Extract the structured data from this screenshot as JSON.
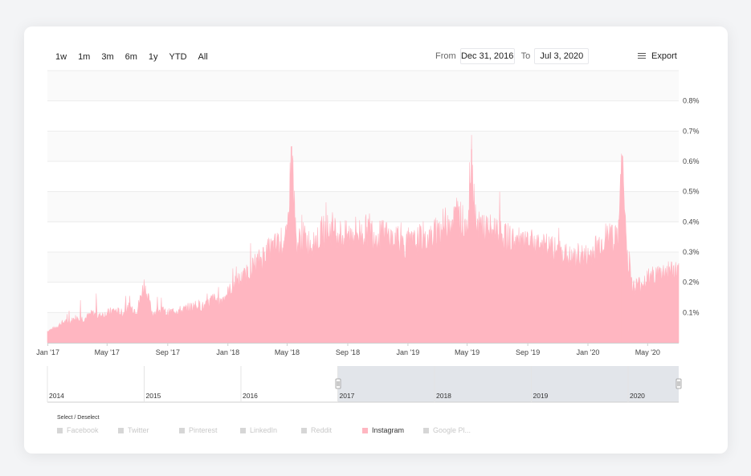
{
  "range_buttons": [
    "1w",
    "1m",
    "3m",
    "6m",
    "1y",
    "YTD",
    "All"
  ],
  "from_label": "From",
  "from_value": "Dec 31, 2016",
  "to_label": "To",
  "to_value": "Jul 3, 2020",
  "export_label": "Export",
  "legend_title": "Select / Deselect",
  "legend": [
    {
      "label": "Facebook",
      "active": false
    },
    {
      "label": "Twitter",
      "active": false
    },
    {
      "label": "Pinterest",
      "active": false
    },
    {
      "label": "LinkedIn",
      "active": false
    },
    {
      "label": "Reddit",
      "active": false
    },
    {
      "label": "Instagram",
      "active": true
    },
    {
      "label": "Google Pl...",
      "active": false
    }
  ],
  "colors": {
    "series": "#ffb6c1",
    "navigator_mask": "#e2e5ea"
  },
  "chart_data": {
    "type": "area",
    "x_range": [
      "2016-12-31",
      "2020-07-03"
    ],
    "ylim": [
      0,
      0.9
    ],
    "yticks": [
      0.1,
      0.2,
      0.3,
      0.4,
      0.5,
      0.6,
      0.7,
      0.8
    ],
    "ytick_labels": [
      "0.1%",
      "0.2%",
      "0.3%",
      "0.4%",
      "0.5%",
      "0.6%",
      "0.7%",
      "0.8%"
    ],
    "xtick_labels": [
      "Jan '17",
      "May '17",
      "Sep '17",
      "Jan '18",
      "May '18",
      "Sep '18",
      "Jan '19",
      "May '19",
      "Sep '19",
      "Jan '20",
      "May '20"
    ],
    "xtick_dates": [
      "2017-01-01",
      "2017-05-01",
      "2017-09-01",
      "2018-01-01",
      "2018-05-01",
      "2018-09-01",
      "2019-01-01",
      "2019-05-01",
      "2019-09-01",
      "2020-01-01",
      "2020-05-01"
    ],
    "grid": true,
    "series": [
      {
        "name": "Instagram",
        "x": [
          "2017-01-01",
          "2017-01-15",
          "2017-02-01",
          "2017-02-15",
          "2017-03-01",
          "2017-03-15",
          "2017-04-01",
          "2017-04-15",
          "2017-05-01",
          "2017-05-15",
          "2017-06-01",
          "2017-06-15",
          "2017-07-01",
          "2017-07-15",
          "2017-08-01",
          "2017-08-15",
          "2017-09-01",
          "2017-09-15",
          "2017-10-01",
          "2017-10-15",
          "2017-11-01",
          "2017-11-15",
          "2017-12-01",
          "2017-12-15",
          "2018-01-01",
          "2018-01-15",
          "2018-02-01",
          "2018-02-15",
          "2018-03-01",
          "2018-03-15",
          "2018-04-01",
          "2018-04-15",
          "2018-05-01",
          "2018-05-10",
          "2018-05-20",
          "2018-06-01",
          "2018-06-15",
          "2018-07-01",
          "2018-07-15",
          "2018-08-01",
          "2018-08-15",
          "2018-09-01",
          "2018-09-15",
          "2018-10-01",
          "2018-10-15",
          "2018-11-01",
          "2018-11-15",
          "2018-12-01",
          "2018-12-15",
          "2019-01-01",
          "2019-01-15",
          "2019-02-01",
          "2019-02-15",
          "2019-03-01",
          "2019-03-15",
          "2019-04-01",
          "2019-04-15",
          "2019-05-01",
          "2019-05-10",
          "2019-05-20",
          "2019-06-01",
          "2019-06-15",
          "2019-07-01",
          "2019-07-15",
          "2019-08-01",
          "2019-08-15",
          "2019-09-01",
          "2019-09-15",
          "2019-10-01",
          "2019-10-15",
          "2019-11-01",
          "2019-11-15",
          "2019-12-01",
          "2019-12-15",
          "2020-01-01",
          "2020-01-15",
          "2020-02-01",
          "2020-02-15",
          "2020-03-01",
          "2020-03-10",
          "2020-03-20",
          "2020-04-01",
          "2020-04-15",
          "2020-05-01",
          "2020-05-15",
          "2020-06-01",
          "2020-06-15",
          "2020-07-03"
        ],
        "values": [
          0.04,
          0.05,
          0.07,
          0.07,
          0.09,
          0.08,
          0.1,
          0.09,
          0.1,
          0.11,
          0.1,
          0.12,
          0.11,
          0.2,
          0.1,
          0.11,
          0.1,
          0.11,
          0.11,
          0.12,
          0.13,
          0.12,
          0.15,
          0.14,
          0.17,
          0.2,
          0.22,
          0.25,
          0.27,
          0.3,
          0.32,
          0.34,
          0.35,
          0.65,
          0.33,
          0.36,
          0.34,
          0.35,
          0.38,
          0.39,
          0.37,
          0.36,
          0.38,
          0.37,
          0.39,
          0.36,
          0.37,
          0.35,
          0.34,
          0.33,
          0.34,
          0.36,
          0.35,
          0.38,
          0.4,
          0.42,
          0.43,
          0.39,
          0.64,
          0.38,
          0.4,
          0.38,
          0.39,
          0.36,
          0.35,
          0.34,
          0.33,
          0.34,
          0.33,
          0.32,
          0.31,
          0.3,
          0.28,
          0.3,
          0.29,
          0.32,
          0.35,
          0.37,
          0.34,
          0.62,
          0.31,
          0.19,
          0.2,
          0.22,
          0.23,
          0.24,
          0.25,
          0.24
        ]
      }
    ]
  }
}
